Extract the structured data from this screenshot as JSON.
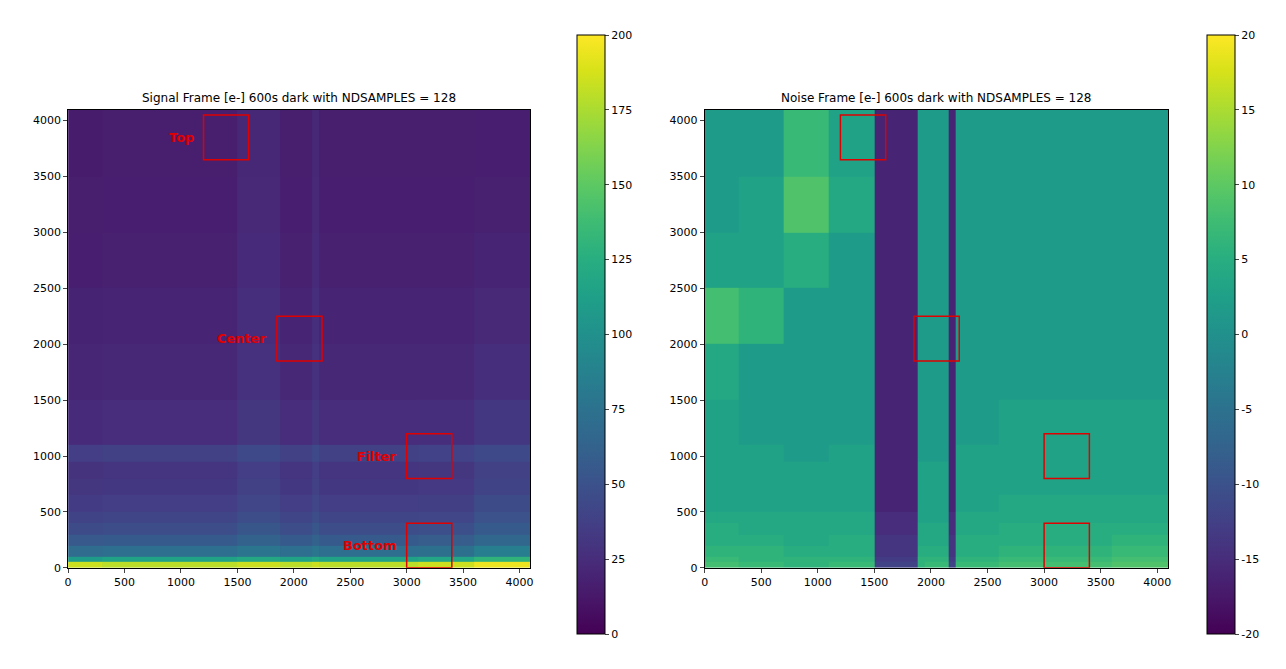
{
  "chart_data": [
    {
      "type": "heatmap",
      "title": "Signal Frame [e-] 600s dark with NDSAMPLES = 128",
      "x_edges": [
        0,
        300,
        700,
        1100,
        1500,
        1880,
        1940,
        2160,
        2220,
        2600,
        3100,
        3600,
        4096
      ],
      "y_edges": [
        0,
        50,
        100,
        200,
        300,
        400,
        500,
        650,
        800,
        950,
        1100,
        1500,
        2000,
        2500,
        3000,
        3500,
        4096
      ],
      "values": [
        [
          185,
          180,
          180,
          180,
          185,
          180,
          180,
          185,
          180,
          180,
          185,
          195
        ],
        [
          110,
          115,
          115,
          115,
          120,
          115,
          115,
          120,
          115,
          115,
          118,
          130
        ],
        [
          70,
          72,
          72,
          72,
          78,
          72,
          72,
          78,
          72,
          72,
          74,
          85
        ],
        [
          55,
          56,
          56,
          56,
          62,
          56,
          56,
          62,
          56,
          56,
          58,
          66
        ],
        [
          46,
          47,
          47,
          47,
          53,
          47,
          47,
          53,
          47,
          47,
          48,
          56
        ],
        [
          40,
          41,
          41,
          41,
          47,
          41,
          41,
          47,
          41,
          41,
          42,
          50
        ],
        [
          35,
          36,
          36,
          36,
          42,
          36,
          36,
          42,
          36,
          36,
          37,
          45
        ],
        [
          31,
          32,
          32,
          32,
          38,
          32,
          32,
          38,
          32,
          32,
          33,
          40
        ],
        [
          29,
          30,
          30,
          30,
          36,
          30,
          30,
          36,
          30,
          30,
          31,
          38
        ],
        [
          36,
          38,
          38,
          38,
          44,
          38,
          38,
          44,
          38,
          38,
          39,
          44
        ],
        [
          24,
          25,
          25,
          25,
          31,
          25,
          25,
          31,
          25,
          25,
          26,
          32
        ],
        [
          21,
          22,
          22,
          22,
          28,
          22,
          22,
          28,
          22,
          22,
          22,
          26
        ],
        [
          19,
          20,
          20,
          20,
          26,
          20,
          20,
          26,
          20,
          20,
          20,
          23
        ],
        [
          17,
          18,
          18,
          18,
          24,
          18,
          18,
          24,
          18,
          18,
          18,
          20
        ],
        [
          16,
          17,
          17,
          17,
          23,
          17,
          17,
          23,
          17,
          17,
          17,
          18
        ],
        [
          15,
          16,
          16,
          16,
          22,
          16,
          16,
          22,
          16,
          16,
          16,
          17
        ]
      ],
      "colorbar_range": [
        0,
        200
      ],
      "colorbar_ticks": [
        0,
        25,
        50,
        75,
        100,
        125,
        150,
        175,
        200
      ],
      "xlim": [
        0,
        4096
      ],
      "ylim": [
        0,
        4096
      ],
      "xticks": [
        0,
        500,
        1000,
        1500,
        2000,
        2500,
        3000,
        3500,
        4000
      ],
      "yticks": [
        0,
        500,
        1000,
        1500,
        2000,
        2500,
        3000,
        3500,
        4000
      ],
      "regions": [
        {
          "label": "Top",
          "x0": 1200,
          "x1": 1600,
          "y0": 3650,
          "y1": 4050
        },
        {
          "label": "Center",
          "x0": 1850,
          "x1": 2250,
          "y0": 1850,
          "y1": 2250
        },
        {
          "label": "Filter",
          "x0": 3000,
          "x1": 3400,
          "y0": 800,
          "y1": 1200
        },
        {
          "label": "Bottom",
          "x0": 3000,
          "x1": 3400,
          "y0": 0,
          "y1": 400
        }
      ]
    },
    {
      "type": "heatmap",
      "title": "Noise Frame [e-] 600s dark with NDSAMPLES = 128",
      "x_edges": [
        0,
        300,
        700,
        1100,
        1500,
        1880,
        1940,
        2160,
        2220,
        2600,
        3100,
        3600,
        4096
      ],
      "y_edges": [
        0,
        50,
        100,
        200,
        300,
        400,
        500,
        650,
        800,
        950,
        1100,
        1500,
        2000,
        2500,
        3000,
        3500,
        4096
      ],
      "values": [
        [
          8,
          7,
          6,
          7,
          -12,
          6,
          7,
          -12,
          7,
          8,
          8,
          9
        ],
        [
          7,
          6,
          6,
          6,
          -13,
          6,
          6,
          -13,
          6,
          7,
          7,
          8
        ],
        [
          6,
          6,
          5,
          5,
          -14,
          5,
          5,
          -14,
          5,
          6,
          6,
          7
        ],
        [
          5,
          5,
          4,
          5,
          -14,
          4,
          4,
          -14,
          5,
          5,
          5,
          6
        ],
        [
          5,
          4,
          4,
          4,
          -15,
          4,
          4,
          -15,
          4,
          5,
          5,
          5
        ],
        [
          4,
          4,
          4,
          4,
          -15,
          3,
          3,
          -15,
          4,
          4,
          4,
          4
        ],
        [
          3,
          3,
          3,
          3,
          -16,
          3,
          3,
          -16,
          3,
          4,
          4,
          4
        ],
        [
          3,
          3,
          3,
          3,
          -16,
          3,
          3,
          -16,
          3,
          3,
          3,
          3
        ],
        [
          3,
          3,
          3,
          3,
          -16,
          3,
          3,
          -16,
          3,
          3,
          3,
          3
        ],
        [
          3,
          3,
          2,
          3,
          -16,
          2,
          2,
          -16,
          3,
          3,
          3,
          3
        ],
        [
          3,
          2,
          2,
          2,
          -16,
          2,
          2,
          -16,
          2,
          3,
          3,
          3
        ],
        [
          4,
          2,
          2,
          2,
          -16,
          2,
          2,
          -16,
          2,
          2,
          2,
          2
        ],
        [
          8,
          6,
          2,
          2,
          -16,
          2,
          2,
          -16,
          2,
          2,
          2,
          2
        ],
        [
          3,
          3,
          5,
          2,
          -16,
          2,
          2,
          -16,
          2,
          2,
          2,
          2
        ],
        [
          2,
          3,
          9,
          4,
          -16,
          2,
          2,
          -16,
          2,
          2,
          2,
          2
        ],
        [
          2,
          2,
          7,
          3,
          -16,
          2,
          2,
          -16,
          2,
          2,
          2,
          2
        ]
      ],
      "colorbar_range": [
        -20,
        20
      ],
      "colorbar_ticks": [
        -20,
        -15,
        -10,
        -5,
        0,
        5,
        10,
        15,
        20
      ],
      "xlim": [
        0,
        4096
      ],
      "ylim": [
        0,
        4096
      ],
      "xticks": [
        0,
        500,
        1000,
        1500,
        2000,
        2500,
        3000,
        3500,
        4000
      ],
      "yticks": [
        0,
        500,
        1000,
        1500,
        2000,
        2500,
        3000,
        3500,
        4000
      ],
      "regions": [
        {
          "x0": 1200,
          "x1": 1600,
          "y0": 3650,
          "y1": 4050
        },
        {
          "x0": 1850,
          "x1": 2250,
          "y0": 1850,
          "y1": 2250
        },
        {
          "x0": 3000,
          "x1": 3400,
          "y0": 800,
          "y1": 1200
        },
        {
          "x0": 3000,
          "x1": 3400,
          "y0": 0,
          "y1": 400
        }
      ]
    }
  ]
}
